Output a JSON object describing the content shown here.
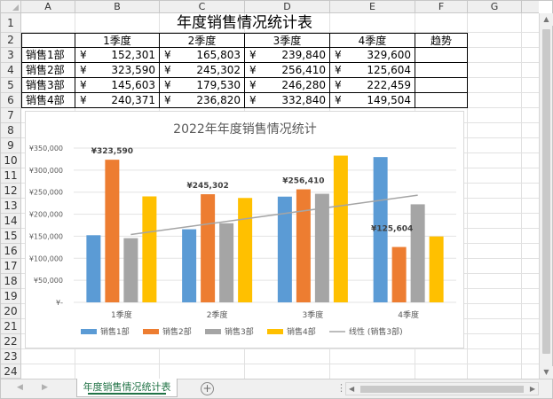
{
  "columns": [
    "A",
    "B",
    "C",
    "D",
    "E",
    "F",
    "G"
  ],
  "rows": [
    "1",
    "2",
    "3",
    "4",
    "5",
    "6",
    "7",
    "8",
    "9",
    "10",
    "11",
    "12",
    "13",
    "14",
    "15",
    "16",
    "17",
    "18",
    "19",
    "20",
    "21",
    "22",
    "23",
    "24",
    "25",
    "26"
  ],
  "sheet": {
    "title": "年度销售情况统计表",
    "headers": [
      "1季度",
      "2季度",
      "3季度",
      "4季度",
      "趋势"
    ],
    "currency": "¥",
    "data_rows": [
      {
        "label": "销售1部",
        "values": [
          "152,301",
          "165,803",
          "239,840",
          "329,600"
        ]
      },
      {
        "label": "销售2部",
        "values": [
          "323,590",
          "245,302",
          "256,410",
          "125,604"
        ]
      },
      {
        "label": "销售3部",
        "values": [
          "145,603",
          "179,530",
          "246,280",
          "222,459"
        ]
      },
      {
        "label": "销售4部",
        "values": [
          "240,371",
          "236,820",
          "332,840",
          "149,504"
        ]
      }
    ]
  },
  "chart_data": {
    "type": "bar",
    "title": "2022年年度销售情况统计",
    "categories": [
      "1季度",
      "2季度",
      "3季度",
      "4季度"
    ],
    "series": [
      {
        "name": "销售1部",
        "values": [
          152301,
          165803,
          239840,
          329600
        ],
        "color": "#5b9bd5"
      },
      {
        "name": "销售2部",
        "values": [
          323590,
          245302,
          256410,
          125604
        ],
        "color": "#ed7d31"
      },
      {
        "name": "销售3部",
        "values": [
          145603,
          179530,
          246280,
          222459
        ],
        "color": "#a5a5a5"
      },
      {
        "name": "销售4部",
        "values": [
          240371,
          236820,
          332840,
          149504
        ],
        "color": "#ffc000"
      }
    ],
    "trendline": {
      "name": "线性 (销售3部)",
      "series": "销售3部",
      "color": "#a5a5a5"
    },
    "data_labels": [
      {
        "text": "¥323,590",
        "series": 1,
        "category": 0
      },
      {
        "text": "¥245,302",
        "series": 1,
        "category": 1
      },
      {
        "text": "¥256,410",
        "series": 1,
        "category": 2
      },
      {
        "text": "¥125,604",
        "series": 1,
        "category": 3
      }
    ],
    "yticks": [
      "¥350,000",
      "¥300,000",
      "¥250,000",
      "¥200,000",
      "¥150,000",
      "¥100,000",
      "¥50,000",
      "¥-"
    ],
    "ylim": [
      0,
      350000
    ],
    "grid": true,
    "legend_position": "bottom"
  },
  "tabs": {
    "active": "年度销售情况统计表",
    "add_label": "+"
  },
  "scroll": {
    "dots": "⋮"
  }
}
